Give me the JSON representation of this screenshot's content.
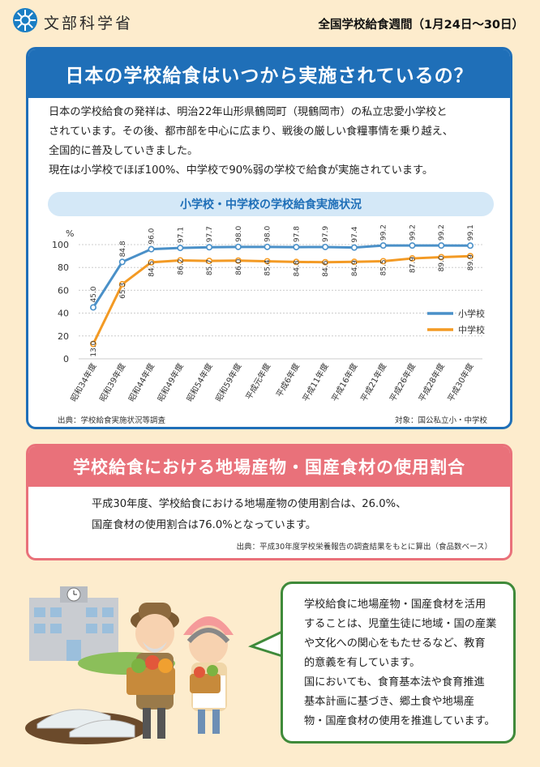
{
  "header": {
    "logo_text": "文部科学省",
    "week_title": "全国学校給食週間（1月24日〜30日）"
  },
  "section1": {
    "title": "日本の学校給食はいつから実施されているの？",
    "paragraph_lines": [
      "日本の学校給食の発祥は、明治22年山形県鶴岡町（現鶴岡市）の私立忠愛小学校と",
      "されています。その後、都市部を中心に広まり、戦後の厳しい食糧事情を乗り越え、",
      "全国的に普及していきました。",
      "現在は小学校でほぼ100%、中学校で90%弱の学校で給食が実施されています。"
    ],
    "source_left": "出典：学校給食実施状況等調査",
    "source_right": "対象：国公私立小・中学校"
  },
  "chart_data": {
    "type": "line",
    "title": "小学校・中学校の学校給食実施状況",
    "ylabel": "%",
    "ylim": [
      0,
      100
    ],
    "yticks": [
      0,
      20,
      40,
      60,
      80,
      100
    ],
    "grid": true,
    "legend_position": "bottom-right",
    "categories": [
      "昭和34年度",
      "昭和39年度",
      "昭和44年度",
      "昭和49年度",
      "昭和54年度",
      "昭和59年度",
      "平成元年度",
      "平成6年度",
      "平成11年度",
      "平成16年度",
      "平成21年度",
      "平成26年度",
      "平成28年度",
      "平成30年度"
    ],
    "series": [
      {
        "name": "小学校",
        "color": "#4a90c8",
        "values": [
          45.0,
          84.8,
          96.0,
          97.1,
          97.7,
          98.0,
          98.0,
          97.8,
          97.9,
          97.4,
          99.2,
          99.2,
          99.2,
          99.1
        ]
      },
      {
        "name": "中学校",
        "color": "#f39a24",
        "values": [
          13.0,
          65.3,
          84.5,
          86.2,
          85.7,
          86.0,
          85.4,
          84.8,
          84.6,
          84.9,
          85.5,
          87.9,
          89.0,
          89.9
        ]
      }
    ]
  },
  "section2": {
    "title": "学校給食における地場産物・国産食材の使用割合",
    "line1": "平成30年度、学校給食における地場産物の使用割合は、26.0%、",
    "line2": "国産食材の使用割合は76.0%となっています。",
    "source": "出典：平成30年度学校栄養報告の調査結果をもとに算出（食品数ベース）"
  },
  "bubble": {
    "lines": [
      "学校給食に地場産物・国産食材を活用",
      "することは、児童生徒に地域・国の産業",
      "や文化への関心をもたせるなど、教育",
      "的意義を有しています。",
      "国においても、食育基本法や食育推進",
      "基本計画に基づき、郷土食や地場産",
      "物・国産食材の使用を推進しています。"
    ]
  },
  "colors": {
    "background": "#fdeccd",
    "section1_accent": "#1f6fb8",
    "section2_accent": "#e9717a",
    "bubble_border": "#3f8a3a",
    "elementary": "#4a90c8",
    "junior_high": "#f39a24"
  }
}
